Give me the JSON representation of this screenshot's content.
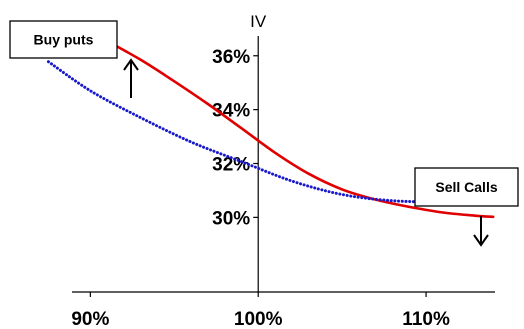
{
  "chart_data": {
    "type": "line",
    "ylabel": "IV",
    "xlim": [
      0.87,
      1.15
    ],
    "ylim": [
      0.2723,
      0.3755
    ],
    "x_ticks": [
      {
        "value": 0.9,
        "label": "90%"
      },
      {
        "value": 1.0,
        "label": "100%"
      },
      {
        "value": 1.1,
        "label": "110%"
      }
    ],
    "y_ticks": [
      {
        "value": 0.3,
        "label": "30%"
      },
      {
        "value": 0.32,
        "label": "32%"
      },
      {
        "value": 0.34,
        "label": "34%"
      },
      {
        "value": 0.36,
        "label": "36%"
      }
    ],
    "grid": false,
    "series": [
      {
        "color": "#e00000",
        "style": "solid",
        "points": [
          [
            0.91,
            0.3655
          ],
          [
            0.93,
            0.3585
          ],
          [
            0.95,
            0.3505
          ],
          [
            0.97,
            0.3421
          ],
          [
            0.99,
            0.3331
          ],
          [
            1.01,
            0.324
          ],
          [
            1.03,
            0.3162
          ],
          [
            1.05,
            0.3104
          ],
          [
            1.07,
            0.3066
          ],
          [
            1.09,
            0.3039
          ],
          [
            1.11,
            0.3018
          ],
          [
            1.13,
            0.3006
          ],
          [
            1.14,
            0.3002
          ]
        ]
      },
      {
        "color": "#1a1acc",
        "style": "dotted",
        "points": [
          [
            0.875,
            0.3578
          ],
          [
            0.9,
            0.347
          ],
          [
            0.93,
            0.337
          ],
          [
            0.96,
            0.328
          ],
          [
            0.99,
            0.3207
          ],
          [
            1.02,
            0.3135
          ],
          [
            1.05,
            0.3085
          ],
          [
            1.08,
            0.3062
          ],
          [
            1.11,
            0.3058
          ],
          [
            1.13,
            0.3064
          ],
          [
            1.145,
            0.307
          ]
        ]
      }
    ],
    "annotations": [
      {
        "label": "Buy puts",
        "arrow": "up",
        "x": 0.905,
        "y": 0.3558
      },
      {
        "label": "Sell Calls",
        "arrow": "down",
        "x": 1.145,
        "y": 0.3015
      }
    ]
  }
}
